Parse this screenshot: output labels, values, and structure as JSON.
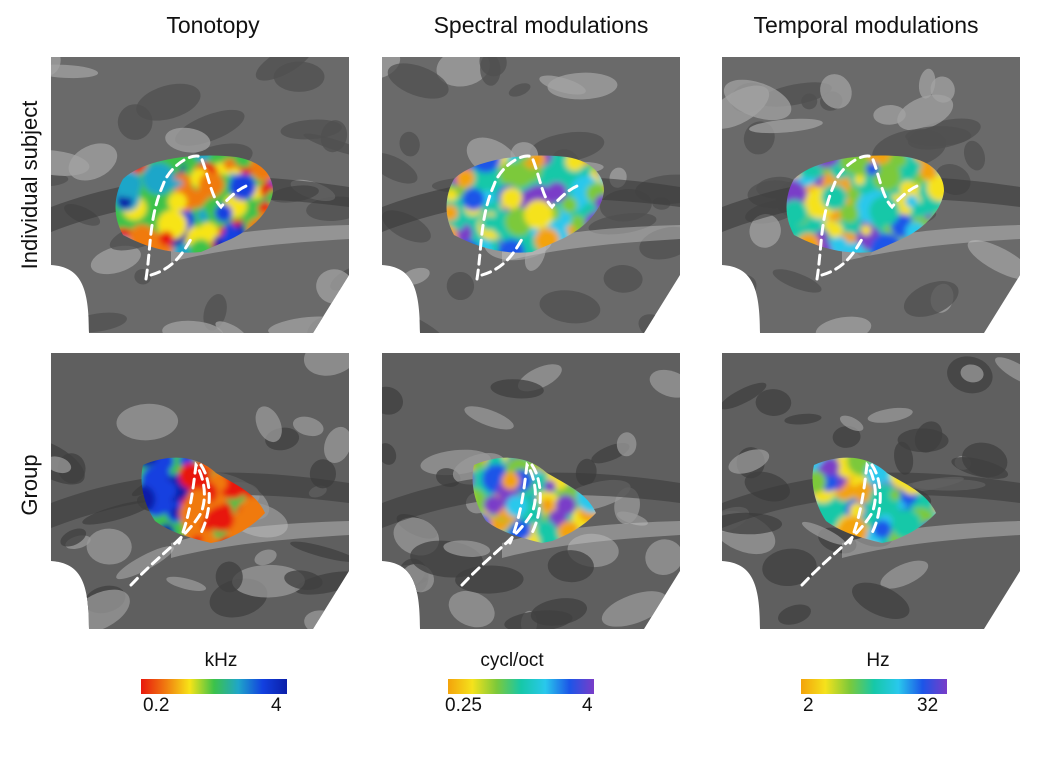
{
  "columns": [
    {
      "title": "Tonotopy"
    },
    {
      "title": "Spectral modulations"
    },
    {
      "title": "Temporal modulations"
    }
  ],
  "rows": [
    {
      "label": "Individual subject"
    },
    {
      "label": "Group"
    }
  ],
  "colorbars": [
    {
      "unit": "kHz",
      "min": "0.2",
      "max": "4",
      "colors": [
        "#e8180e",
        "#f07a10",
        "#f7e417",
        "#3cc24a",
        "#1fa6c9",
        "#1240e0",
        "#0b1fa8"
      ]
    },
    {
      "unit": "cycl/oct",
      "min": "0.25",
      "max": "4",
      "colors": [
        "#f3a30b",
        "#f5e21c",
        "#7cc93a",
        "#16c8a8",
        "#29c8ec",
        "#1c55e8",
        "#7a3cc8"
      ]
    },
    {
      "unit": "Hz",
      "min": "2",
      "max": "32",
      "colors": [
        "#f3a30b",
        "#f5e21c",
        "#7cc93a",
        "#16c8a8",
        "#29c8ec",
        "#1c55e8",
        "#7a3cc8"
      ]
    }
  ]
}
